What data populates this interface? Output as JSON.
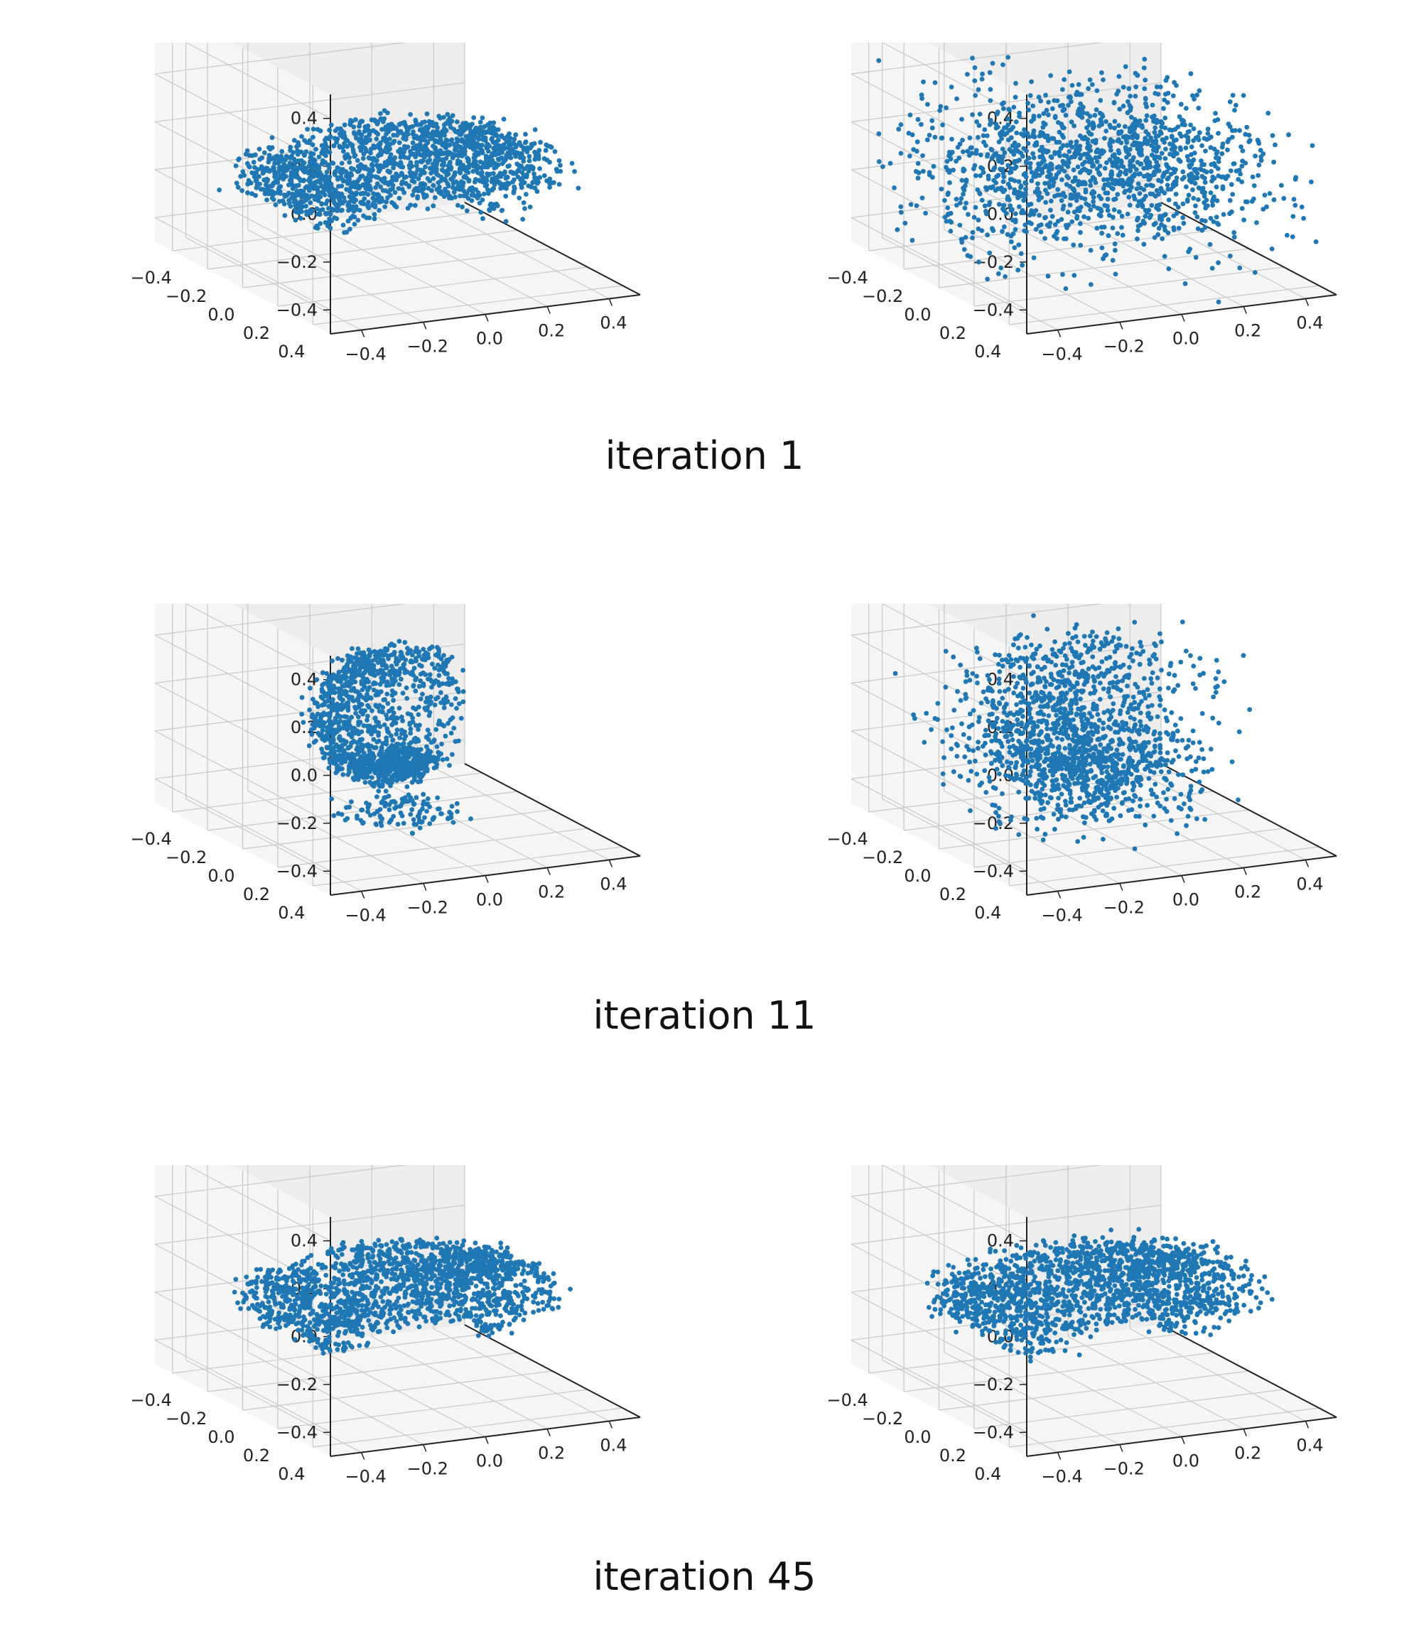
{
  "colors": {
    "points": "#1f77b4",
    "pane": "#f6f6f6",
    "pane_dark": "#ededed",
    "grid": "#c8c8c8",
    "axis": "#222222"
  },
  "captions": [
    "iteration 1",
    "iteration 11",
    "iteration 45"
  ],
  "chart_data": [
    {
      "type": "scatter",
      "projection": "3d",
      "shape": "car",
      "spread": 0.05,
      "title": "",
      "xlabel": "",
      "ylabel": "",
      "zlabel": "",
      "z_ticks": [
        "0.4",
        "0.2",
        "0.0",
        "−0.2",
        "−0.4"
      ],
      "x_ticks": [
        "−0.4",
        "−0.2",
        "0.0",
        "0.2",
        "0.4"
      ],
      "y_ticks": [
        "0.4",
        "0.2",
        "0.0",
        "−0.2",
        "−0.4"
      ],
      "xlim": [
        -0.5,
        0.5
      ],
      "ylim": [
        -0.5,
        0.5
      ],
      "zlim": [
        -0.5,
        0.5
      ],
      "grid": true
    },
    {
      "type": "scatter",
      "projection": "3d",
      "shape": "car",
      "spread": 0.35,
      "title": "",
      "xlabel": "",
      "ylabel": "",
      "zlabel": "",
      "z_ticks": [
        "0.4",
        "0.2",
        "0.0",
        "−0.2",
        "−0.4"
      ],
      "x_ticks": [
        "−0.4",
        "−0.2",
        "0.0",
        "0.2",
        "0.4"
      ],
      "y_ticks": [
        "0.4",
        "0.2",
        "0.0",
        "−0.2",
        "−0.4"
      ],
      "xlim": [
        -0.5,
        0.5
      ],
      "ylim": [
        -0.5,
        0.5
      ],
      "zlim": [
        -0.5,
        0.5
      ],
      "grid": true
    },
    {
      "type": "scatter",
      "projection": "3d",
      "shape": "chair",
      "spread": 0.04,
      "title": "",
      "xlabel": "",
      "ylabel": "",
      "zlabel": "",
      "z_ticks": [
        "0.4",
        "0.2",
        "0.0",
        "−0.2",
        "−0.4"
      ],
      "x_ticks": [
        "−0.4",
        "−0.2",
        "0.0",
        "0.2",
        "0.4"
      ],
      "y_ticks": [
        "0.4",
        "0.2",
        "0.0",
        "−0.2",
        "−0.4"
      ],
      "xlim": [
        -0.5,
        0.5
      ],
      "ylim": [
        -0.5,
        0.5
      ],
      "zlim": [
        -0.5,
        0.5
      ],
      "grid": true
    },
    {
      "type": "scatter",
      "projection": "3d",
      "shape": "chair",
      "spread": 0.22,
      "title": "",
      "xlabel": "",
      "ylabel": "",
      "zlabel": "",
      "z_ticks": [
        "0.4",
        "0.2",
        "0.0",
        "−0.2",
        "−0.4"
      ],
      "x_ticks": [
        "−0.4",
        "−0.2",
        "0.0",
        "0.2",
        "0.4"
      ],
      "y_ticks": [
        "0.4",
        "0.2",
        "0.0",
        "−0.2",
        "−0.4"
      ],
      "xlim": [
        -0.5,
        0.5
      ],
      "ylim": [
        -0.5,
        0.5
      ],
      "zlim": [
        -0.5,
        0.5
      ],
      "grid": true
    },
    {
      "type": "scatter",
      "projection": "3d",
      "shape": "car",
      "spread": 0.03,
      "title": "",
      "xlabel": "",
      "ylabel": "",
      "zlabel": "",
      "z_ticks": [
        "0.4",
        "0.2",
        "0.0",
        "−0.2",
        "−0.4"
      ],
      "x_ticks": [
        "−0.4",
        "−0.2",
        "0.0",
        "0.2",
        "0.4"
      ],
      "y_ticks": [
        "0.4",
        "0.2",
        "0.0",
        "−0.2",
        "−0.4"
      ],
      "xlim": [
        -0.5,
        0.5
      ],
      "ylim": [
        -0.5,
        0.5
      ],
      "zlim": [
        -0.5,
        0.5
      ],
      "grid": true
    },
    {
      "type": "scatter",
      "projection": "3d",
      "shape": "car",
      "spread": 0.06,
      "title": "",
      "xlabel": "",
      "ylabel": "",
      "zlabel": "",
      "z_ticks": [
        "0.4",
        "0.2",
        "0.0",
        "−0.2",
        "−0.4"
      ],
      "x_ticks": [
        "−0.4",
        "−0.2",
        "0.0",
        "0.2",
        "0.4"
      ],
      "y_ticks": [
        "0.4",
        "0.2",
        "0.0",
        "−0.2",
        "−0.4"
      ],
      "xlim": [
        -0.5,
        0.5
      ],
      "ylim": [
        -0.5,
        0.5
      ],
      "zlim": [
        -0.5,
        0.5
      ],
      "grid": true
    }
  ]
}
